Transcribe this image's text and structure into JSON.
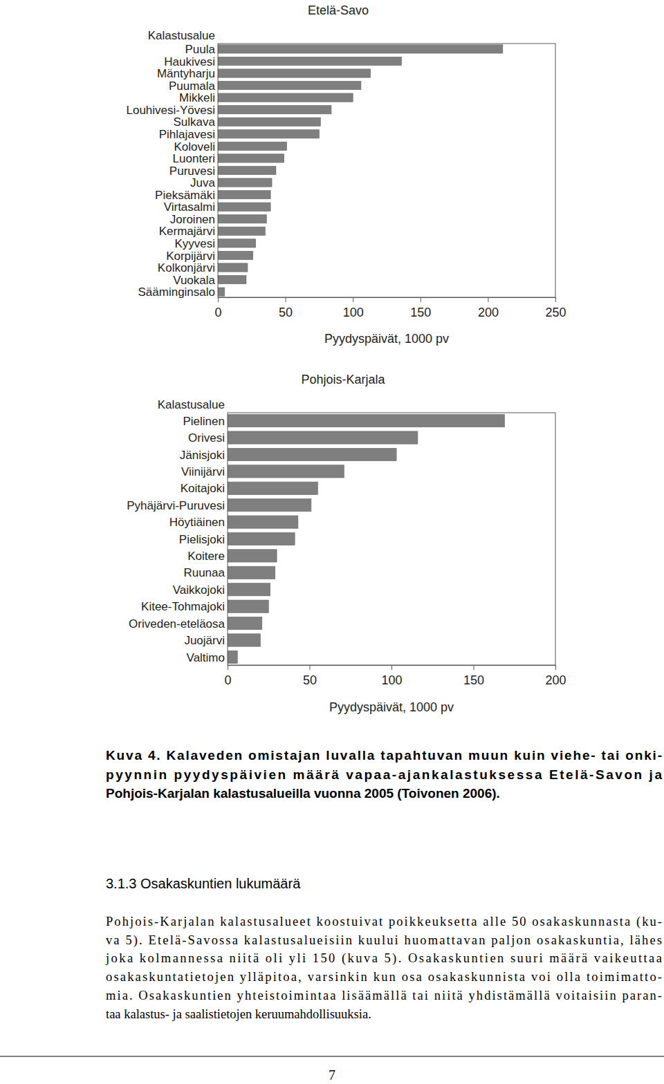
{
  "chart_data": [
    {
      "type": "bar",
      "orientation": "horizontal",
      "title": "Etelä-Savo",
      "ylabel": "Kalastusalue",
      "xlabel": "Pyydyspäivät, 1000 pv",
      "categories": [
        "Puula",
        "Haukivesi",
        "Mäntyharju",
        "Puumala",
        "Mikkeli",
        "Louhivesi-Yövesi",
        "Sulkava",
        "Pihlajavesi",
        "Koloveli",
        "Luonteri",
        "Puruvesi",
        "Juva",
        "Pieksämäki",
        "Virtasalmi",
        "Joroinen",
        "Kermajärvi",
        "Kyyvesi",
        "Korpijärvi",
        "Kolkonjärvi",
        "Vuokala",
        "Sääminginsalo"
      ],
      "values": [
        211,
        136,
        113,
        106,
        100,
        84,
        76,
        75,
        51,
        49,
        43,
        40,
        39,
        39,
        36,
        35,
        28,
        26,
        22,
        21,
        5
      ],
      "color": "#7f7f7f",
      "xlim": [
        0,
        250
      ],
      "xticks": [
        0,
        50,
        100,
        150,
        200,
        250
      ],
      "grid": false
    },
    {
      "type": "bar",
      "orientation": "horizontal",
      "title": "Pohjois-Karjala",
      "ylabel": "Kalastusalue",
      "xlabel": "Pyydyspäivät, 1000 pv",
      "categories": [
        "Pielinen",
        "Orivesi",
        "Jänisjoki",
        "Viinijärvi",
        "Koitajoki",
        "Pyhäjärvi-Puruvesi",
        "Höytiäinen",
        "Pielisjoki",
        "Koitere",
        "Ruunaa",
        "Vaikkojoki",
        "Kitee-Tohmajoki",
        "Oriveden-eteläosa",
        "Juojärvi",
        "Valtimo"
      ],
      "values": [
        169,
        116,
        103,
        71,
        55,
        51,
        43,
        41,
        30,
        29,
        26,
        25,
        21,
        20,
        6
      ],
      "color": "#7f7f7f",
      "xlim": [
        0,
        200
      ],
      "xticks": [
        0,
        50,
        100,
        150,
        200
      ],
      "grid": false
    }
  ],
  "document": {
    "caption": [
      "Kuva 4. Kalaveden omistajan luvalla tapahtuvan muun kuin viehe- tai onki-",
      "pyynnin pyydyspäivien määrä vapaa-ajankalastuksessa Etelä-Savon ja",
      "Pohjois-Karjalan kalastusalueilla vuonna 2005 (Toivonen 2006)."
    ],
    "heading": "3.1.3 Osakaskuntien lukumäärä",
    "paragraph": [
      "Pohjois-Karjalan kalastusalueet koostuivat poikkeuksetta alle 50 osakaskunnasta (ku-",
      "va 5). Etelä-Savossa kalastusalueisiin kuului huomattavan paljon osakaskuntia, lähes",
      "joka kolmannessa niitä oli yli 150 (kuva 5). Osakaskuntien suuri määrä vaikeuttaa",
      "osakaskuntatietojen ylläpitoa, varsinkin kun osa osakaskunnista voi olla toimimatto-",
      "mia. Osakaskuntien yhteistoimintaa lisäämällä tai niitä yhdistämällä voitaisiin paran-",
      "taa kalastus- ja saalistietojen keruumahdollisuuksia."
    ],
    "page_number": "7"
  }
}
